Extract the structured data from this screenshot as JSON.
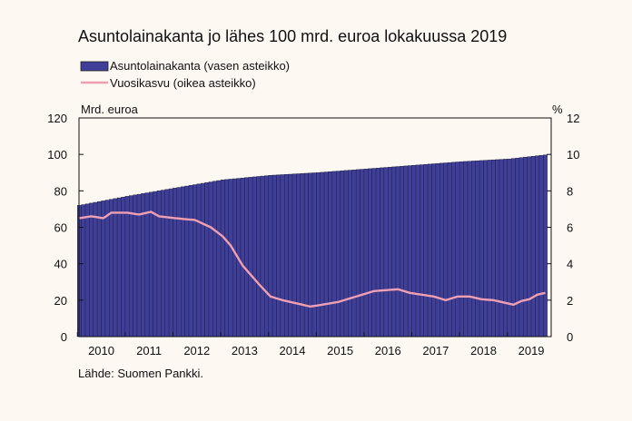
{
  "chart_data": {
    "type": "bar",
    "title": "Asuntolainakanta jo lähes 100 mrd. euroa lokakuussa 2019",
    "left_axis": {
      "label": "Mrd. euroa",
      "ylim": [
        0,
        120
      ],
      "ticks": [
        0,
        20,
        40,
        60,
        80,
        100,
        120
      ]
    },
    "right_axis": {
      "label": "%",
      "ylim": [
        0,
        12
      ],
      "ticks": [
        0,
        2,
        4,
        6,
        8,
        10,
        12
      ]
    },
    "x_tick_labels": [
      "2010",
      "2011",
      "2012",
      "2013",
      "2014",
      "2015",
      "2016",
      "2017",
      "2018",
      "2019"
    ],
    "x_range": [
      "2010-01",
      "2019-10"
    ],
    "legend_placement": "top-left",
    "grid": false,
    "series": [
      {
        "name": "Asuntolainakanta (vasen asteikko)",
        "type": "bar",
        "axis": "left",
        "color": "#3f3f9a",
        "anchors": [
          {
            "x": "2010-01",
            "y": 72.0
          },
          {
            "x": "2011-01",
            "y": 77.0
          },
          {
            "x": "2012-01",
            "y": 81.5
          },
          {
            "x": "2013-01",
            "y": 86.0
          },
          {
            "x": "2014-01",
            "y": 88.5
          },
          {
            "x": "2015-01",
            "y": 90.0
          },
          {
            "x": "2016-01",
            "y": 92.0
          },
          {
            "x": "2017-01",
            "y": 94.0
          },
          {
            "x": "2018-01",
            "y": 96.0
          },
          {
            "x": "2019-01",
            "y": 97.5
          },
          {
            "x": "2019-10",
            "y": 99.7
          }
        ]
      },
      {
        "name": "Vuosikasvu (oikea asteikko)",
        "type": "line",
        "axis": "right",
        "color": "#ef9fb2",
        "anchors": [
          {
            "x": "2010-01",
            "y": 6.5
          },
          {
            "x": "2010-04",
            "y": 6.6
          },
          {
            "x": "2010-07",
            "y": 6.5
          },
          {
            "x": "2010-09",
            "y": 6.8
          },
          {
            "x": "2011-01",
            "y": 6.8
          },
          {
            "x": "2011-04",
            "y": 6.7
          },
          {
            "x": "2011-07",
            "y": 6.85
          },
          {
            "x": "2011-09",
            "y": 6.6
          },
          {
            "x": "2012-01",
            "y": 6.5
          },
          {
            "x": "2012-06",
            "y": 6.4
          },
          {
            "x": "2012-10",
            "y": 6.0
          },
          {
            "x": "2013-01",
            "y": 5.5
          },
          {
            "x": "2013-03",
            "y": 5.0
          },
          {
            "x": "2013-06",
            "y": 3.9
          },
          {
            "x": "2013-10",
            "y": 2.9
          },
          {
            "x": "2014-01",
            "y": 2.2
          },
          {
            "x": "2014-04",
            "y": 2.0
          },
          {
            "x": "2014-08",
            "y": 1.8
          },
          {
            "x": "2014-11",
            "y": 1.65
          },
          {
            "x": "2015-02",
            "y": 1.75
          },
          {
            "x": "2015-06",
            "y": 1.9
          },
          {
            "x": "2015-09",
            "y": 2.1
          },
          {
            "x": "2015-12",
            "y": 2.3
          },
          {
            "x": "2016-03",
            "y": 2.5
          },
          {
            "x": "2016-06",
            "y": 2.55
          },
          {
            "x": "2016-09",
            "y": 2.6
          },
          {
            "x": "2016-12",
            "y": 2.4
          },
          {
            "x": "2017-03",
            "y": 2.3
          },
          {
            "x": "2017-06",
            "y": 2.2
          },
          {
            "x": "2017-09",
            "y": 2.0
          },
          {
            "x": "2017-12",
            "y": 2.2
          },
          {
            "x": "2018-03",
            "y": 2.2
          },
          {
            "x": "2018-06",
            "y": 2.05
          },
          {
            "x": "2018-09",
            "y": 2.0
          },
          {
            "x": "2018-12",
            "y": 1.85
          },
          {
            "x": "2019-02",
            "y": 1.75
          },
          {
            "x": "2019-04",
            "y": 1.95
          },
          {
            "x": "2019-06",
            "y": 2.05
          },
          {
            "x": "2019-08",
            "y": 2.3
          },
          {
            "x": "2019-10",
            "y": 2.4
          }
        ]
      }
    ]
  },
  "source_note": "Lähde: Suomen Pankki."
}
